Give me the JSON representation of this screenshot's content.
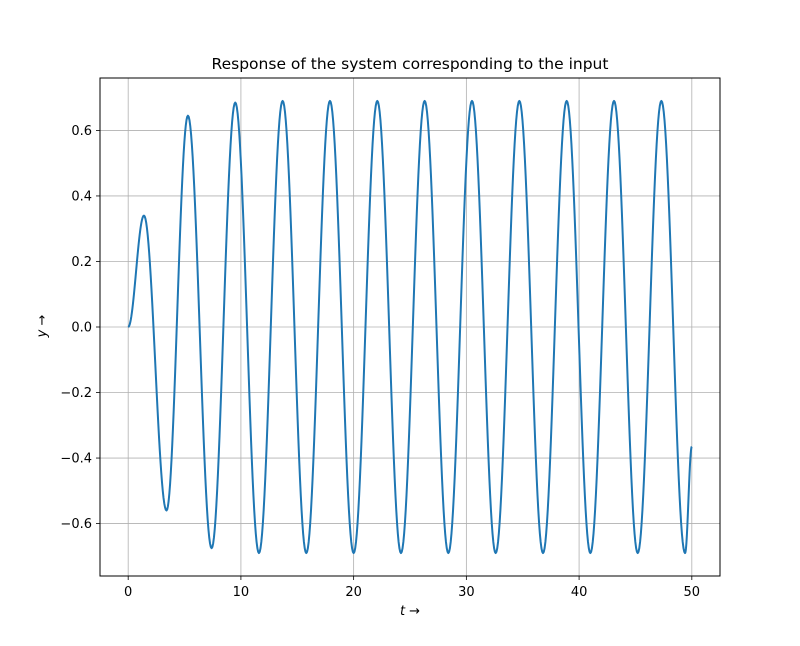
{
  "chart_data": {
    "type": "line",
    "title": "Response of the system corresponding to the input",
    "xlabel": "t →",
    "ylabel": "y →",
    "xlim": [
      -2.5,
      52.5
    ],
    "ylim": [
      -0.76,
      0.76
    ],
    "xticks": [
      0,
      10,
      20,
      30,
      40,
      50
    ],
    "yticks": [
      -0.6,
      -0.4,
      -0.2,
      0.0,
      0.2,
      0.4,
      0.6
    ],
    "xtick_labels": [
      "0",
      "10",
      "20",
      "30",
      "40",
      "50"
    ],
    "ytick_labels": [
      "−0.6",
      "−0.4",
      "−0.2",
      "0.0",
      "0.2",
      "0.4",
      "0.6"
    ],
    "grid": true,
    "legend": "none",
    "colors": {
      "line": "#1f77b4",
      "grid": "#b0b0b0",
      "axes": "#000000"
    },
    "series": [
      {
        "x": [
          0,
          1.4,
          3.4,
          5.3,
          7.4,
          9.5,
          11.6,
          13.7,
          15.8,
          17.9,
          20.0,
          22.1,
          24.2,
          26.3,
          28.4,
          30.5,
          32.6,
          34.7,
          36.8,
          38.9,
          41.0,
          43.1,
          45.2,
          47.3,
          49.4,
          50.0
        ],
        "values": [
          0.0,
          0.34,
          -0.56,
          0.645,
          -0.675,
          0.685,
          -0.69,
          0.69,
          -0.69,
          0.69,
          -0.69,
          0.69,
          -0.69,
          0.69,
          -0.69,
          0.69,
          -0.69,
          0.69,
          -0.69,
          0.69,
          -0.69,
          0.69,
          -0.69,
          0.69,
          -0.69,
          -0.365
        ]
      }
    ]
  }
}
